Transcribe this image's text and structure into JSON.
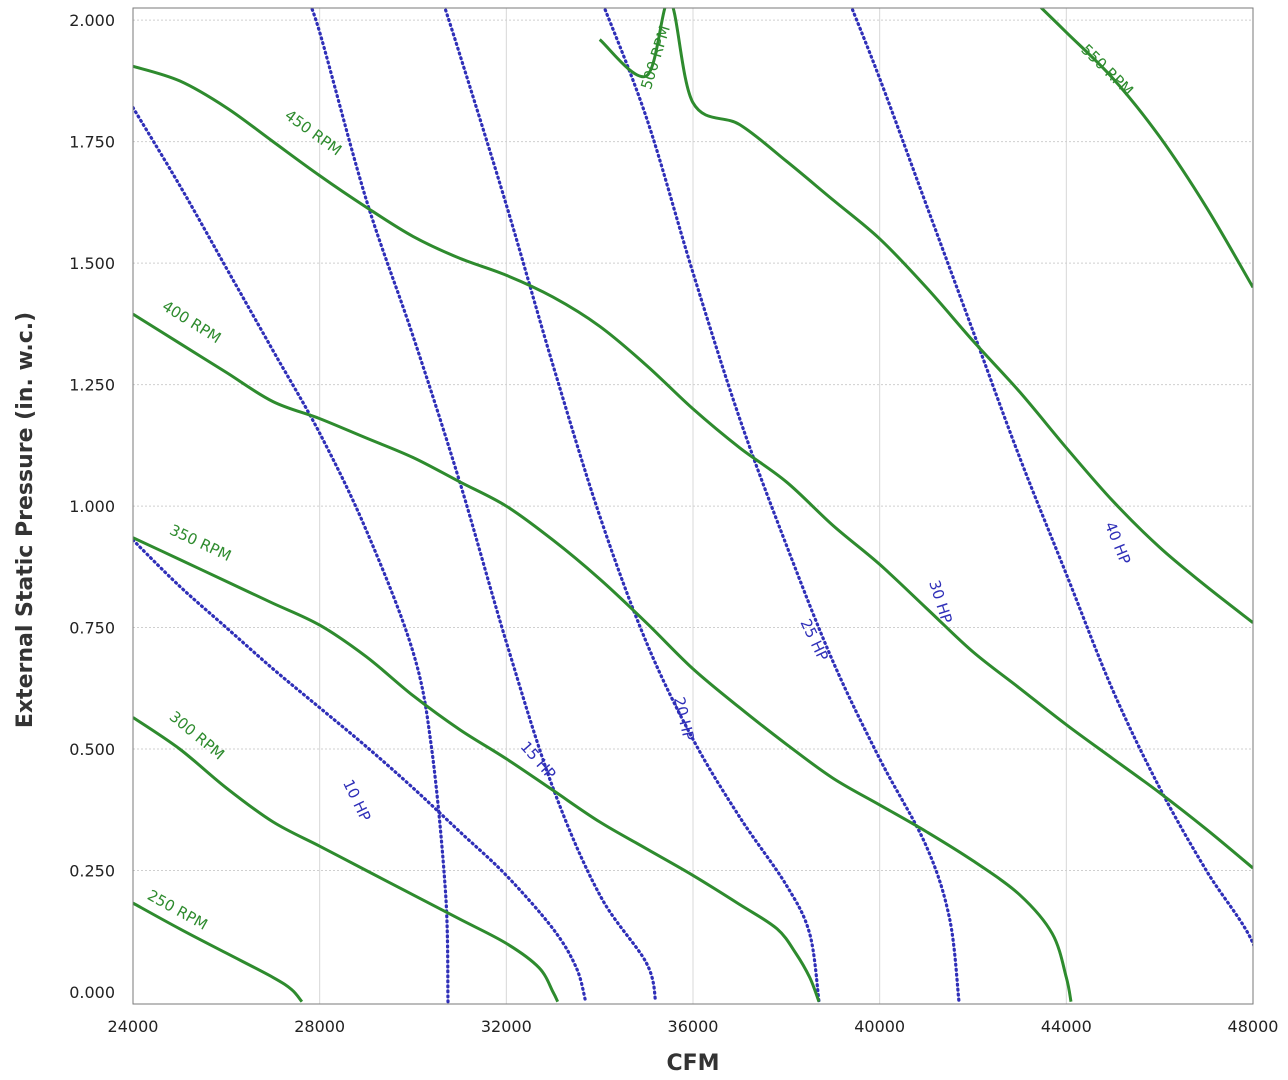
{
  "chart_data": {
    "type": "line",
    "title": "",
    "xlabel": "CFM",
    "ylabel": "External Static Pressure (in. w.c.)",
    "xlim": [
      24000,
      48000
    ],
    "ylim": [
      0,
      2
    ],
    "grid": true,
    "x_ticks": [
      "24000",
      "28000",
      "32000",
      "36000",
      "40000",
      "44000",
      "48000"
    ],
    "y_ticks": [
      "0.000",
      "0.250",
      "0.500",
      "0.750",
      "1.000",
      "1.250",
      "1.500",
      "1.750",
      "2.000"
    ],
    "series": [
      {
        "name": "250 RPM",
        "kind": "rpm",
        "color": "#2e8b2e",
        "points": [
          [
            24000,
            0.183
          ],
          [
            25000,
            0.13
          ],
          [
            26000,
            0.08
          ],
          [
            27000,
            0.03
          ],
          [
            27400,
            0.005
          ],
          [
            27620,
            -0.02
          ]
        ]
      },
      {
        "name": "300 RPM",
        "kind": "rpm",
        "color": "#2e8b2e",
        "points": [
          [
            24000,
            0.565
          ],
          [
            25000,
            0.5
          ],
          [
            26000,
            0.42
          ],
          [
            27000,
            0.35
          ],
          [
            28000,
            0.3
          ],
          [
            29000,
            0.25
          ],
          [
            30000,
            0.2
          ],
          [
            31000,
            0.15
          ],
          [
            32000,
            0.1
          ],
          [
            32700,
            0.05
          ],
          [
            33000,
            0.0
          ],
          [
            33100,
            -0.02
          ]
        ]
      },
      {
        "name": "350 RPM",
        "kind": "rpm",
        "color": "#2e8b2e",
        "points": [
          [
            24000,
            0.935
          ],
          [
            25000,
            0.89
          ],
          [
            26000,
            0.845
          ],
          [
            27000,
            0.8
          ],
          [
            28000,
            0.755
          ],
          [
            29000,
            0.69
          ],
          [
            30000,
            0.61
          ],
          [
            31000,
            0.54
          ],
          [
            32000,
            0.48
          ],
          [
            33000,
            0.415
          ],
          [
            34000,
            0.35
          ],
          [
            35000,
            0.295
          ],
          [
            36000,
            0.24
          ],
          [
            37000,
            0.18
          ],
          [
            37800,
            0.13
          ],
          [
            38200,
            0.08
          ],
          [
            38500,
            0.03
          ],
          [
            38700,
            -0.02
          ]
        ]
      },
      {
        "name": "400 RPM",
        "kind": "rpm",
        "color": "#2e8b2e",
        "points": [
          [
            24000,
            1.395
          ],
          [
            25000,
            1.335
          ],
          [
            26000,
            1.275
          ],
          [
            27000,
            1.215
          ],
          [
            28000,
            1.18
          ],
          [
            29000,
            1.14
          ],
          [
            30000,
            1.1
          ],
          [
            31000,
            1.05
          ],
          [
            32000,
            1.0
          ],
          [
            33000,
            0.93
          ],
          [
            34000,
            0.85
          ],
          [
            35000,
            0.76
          ],
          [
            36000,
            0.665
          ],
          [
            37000,
            0.585
          ],
          [
            38000,
            0.51
          ],
          [
            39000,
            0.44
          ],
          [
            40000,
            0.385
          ],
          [
            41000,
            0.33
          ],
          [
            42000,
            0.27
          ],
          [
            43000,
            0.2
          ],
          [
            43700,
            0.12
          ],
          [
            44000,
            0.03
          ],
          [
            44100,
            -0.02
          ]
        ]
      },
      {
        "name": "450 RPM",
        "kind": "rpm",
        "color": "#2e8b2e",
        "points": [
          [
            24000,
            1.905
          ],
          [
            25000,
            1.875
          ],
          [
            26000,
            1.82
          ],
          [
            27000,
            1.75
          ],
          [
            28000,
            1.68
          ],
          [
            29000,
            1.615
          ],
          [
            30000,
            1.555
          ],
          [
            31000,
            1.51
          ],
          [
            32000,
            1.475
          ],
          [
            33000,
            1.43
          ],
          [
            34000,
            1.37
          ],
          [
            35000,
            1.29
          ],
          [
            36000,
            1.2
          ],
          [
            37000,
            1.12
          ],
          [
            38000,
            1.05
          ],
          [
            39000,
            0.96
          ],
          [
            40000,
            0.88
          ],
          [
            41000,
            0.79
          ],
          [
            42000,
            0.7
          ],
          [
            43000,
            0.625
          ],
          [
            44000,
            0.55
          ],
          [
            45000,
            0.48
          ],
          [
            46000,
            0.41
          ],
          [
            47000,
            0.335
          ],
          [
            48000,
            0.255
          ]
        ]
      },
      {
        "name": "500 RPM",
        "kind": "rpm",
        "color": "#2e8b2e",
        "points": [
          [
            35500,
            2.04
          ],
          [
            34000,
            1.96
          ],
          [
            35000,
            1.885
          ],
          [
            36000,
            1.83
          ],
          [
            37000,
            1.785
          ],
          [
            38000,
            1.71
          ],
          [
            39000,
            1.63
          ],
          [
            40000,
            1.55
          ],
          [
            41000,
            1.45
          ],
          [
            42000,
            1.34
          ],
          [
            43000,
            1.235
          ],
          [
            44000,
            1.12
          ],
          [
            45000,
            1.01
          ],
          [
            46000,
            0.915
          ],
          [
            47000,
            0.835
          ],
          [
            48000,
            0.76
          ]
        ]
      },
      {
        "name": "550 RPM",
        "kind": "rpm",
        "color": "#2e8b2e",
        "points": [
          [
            43200,
            2.05
          ],
          [
            44000,
            1.975
          ],
          [
            45000,
            1.88
          ],
          [
            46000,
            1.76
          ],
          [
            47000,
            1.615
          ],
          [
            48000,
            1.45
          ]
        ]
      },
      {
        "name": "10 HP",
        "kind": "hp",
        "color": "#2f2fb8",
        "points": [
          [
            24000,
            1.82
          ],
          [
            25000,
            1.66
          ],
          [
            26000,
            1.49
          ],
          [
            27000,
            1.32
          ],
          [
            28000,
            1.15
          ],
          [
            29000,
            0.95
          ],
          [
            30000,
            0.7
          ],
          [
            30400,
            0.5
          ],
          [
            30700,
            0.2
          ],
          [
            30750,
            -0.02
          ]
        ]
      },
      {
        "name": "15 HP",
        "kind": "hp",
        "color": "#2f2fb8",
        "points": [
          [
            24000,
            0.93
          ],
          [
            25000,
            0.835
          ],
          [
            26000,
            0.75
          ],
          [
            27000,
            0.665
          ],
          [
            28000,
            0.585
          ],
          [
            29000,
            0.505
          ],
          [
            30000,
            0.42
          ],
          [
            31000,
            0.33
          ],
          [
            32000,
            0.24
          ],
          [
            33000,
            0.13
          ],
          [
            33500,
            0.05
          ],
          [
            33700,
            -0.02
          ]
        ]
      },
      {
        "name": "20 HP",
        "kind": "hp",
        "color": "#2f2fb8",
        "points": [
          [
            27700,
            2.05
          ],
          [
            28000,
            1.975
          ],
          [
            29000,
            1.63
          ],
          [
            30000,
            1.35
          ],
          [
            31000,
            1.05
          ],
          [
            32000,
            0.72
          ],
          [
            33000,
            0.42
          ],
          [
            34000,
            0.2
          ],
          [
            35000,
            0.06
          ],
          [
            35200,
            -0.02
          ]
        ]
      },
      {
        "name": "25 HP",
        "kind": "hp",
        "color": "#2f2fb8",
        "points": [
          [
            30600,
            2.05
          ],
          [
            31000,
            1.93
          ],
          [
            32000,
            1.62
          ],
          [
            33000,
            1.29
          ],
          [
            34000,
            0.98
          ],
          [
            35000,
            0.72
          ],
          [
            36000,
            0.52
          ],
          [
            37000,
            0.36
          ],
          [
            38000,
            0.22
          ],
          [
            38500,
            0.12
          ],
          [
            38700,
            -0.02
          ]
        ]
      },
      {
        "name": "30 HP",
        "kind": "hp",
        "color": "#2f2fb8",
        "points": [
          [
            34000,
            2.05
          ],
          [
            35000,
            1.8
          ],
          [
            36000,
            1.48
          ],
          [
            37000,
            1.18
          ],
          [
            38000,
            0.92
          ],
          [
            39000,
            0.68
          ],
          [
            40000,
            0.48
          ],
          [
            41000,
            0.3
          ],
          [
            41500,
            0.15
          ],
          [
            41700,
            -0.02
          ]
        ]
      },
      {
        "name": "40 HP",
        "kind": "hp",
        "color": "#2f2fb8",
        "points": [
          [
            39300,
            2.05
          ],
          [
            40000,
            1.88
          ],
          [
            41000,
            1.62
          ],
          [
            42000,
            1.36
          ],
          [
            43000,
            1.1
          ],
          [
            44000,
            0.86
          ],
          [
            45000,
            0.62
          ],
          [
            46000,
            0.42
          ],
          [
            47000,
            0.25
          ],
          [
            48000,
            0.1
          ],
          [
            48200,
            -0.02
          ]
        ]
      }
    ],
    "annotations": [
      {
        "text": "250 RPM",
        "series": "250 RPM",
        "x": 24900,
        "y": 0.16
      },
      {
        "text": "300 RPM",
        "series": "300 RPM",
        "x": 25300,
        "y": 0.52
      },
      {
        "text": "350 RPM",
        "series": "350 RPM",
        "x": 25400,
        "y": 0.915
      },
      {
        "text": "400 RPM",
        "series": "400 RPM",
        "x": 25200,
        "y": 1.37
      },
      {
        "text": "450 RPM",
        "series": "450 RPM",
        "x": 27800,
        "y": 1.76
      },
      {
        "text": "500 RPM",
        "series": "500 RPM",
        "x": 35300,
        "y": 1.92
      },
      {
        "text": "550 RPM",
        "series": "550 RPM",
        "x": 44800,
        "y": 1.89
      },
      {
        "text": "10 HP",
        "series": "10 HP",
        "x": 28700,
        "y": 0.39
      },
      {
        "text": "15 HP",
        "series": "15 HP",
        "x": 32600,
        "y": 0.47
      },
      {
        "text": "20 HP",
        "series": "20 HP",
        "x": 35700,
        "y": 0.56
      },
      {
        "text": "25 HP",
        "series": "25 HP",
        "x": 38500,
        "y": 0.72
      },
      {
        "text": "30 HP",
        "series": "30 HP",
        "x": 41200,
        "y": 0.8
      },
      {
        "text": "40 HP",
        "series": "40 HP",
        "x": 45000,
        "y": 0.92
      }
    ]
  }
}
